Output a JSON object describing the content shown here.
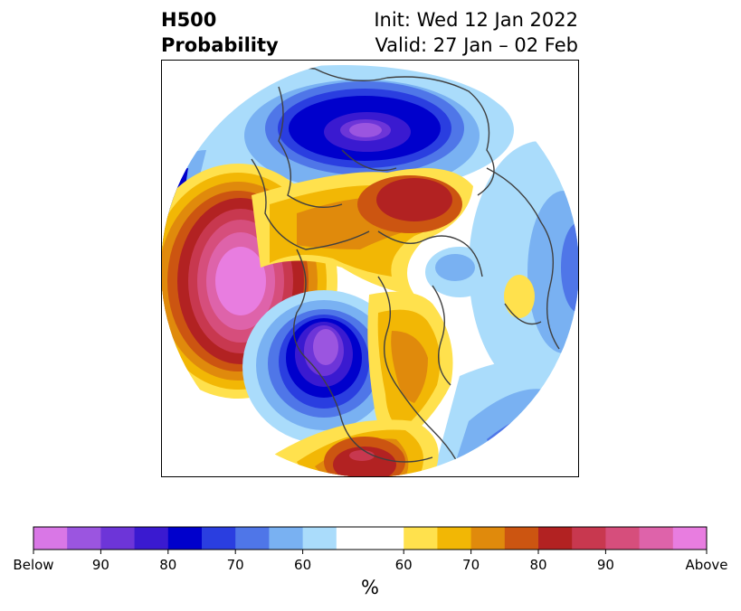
{
  "title": {
    "left_line1": "H500",
    "left_line2": "Probability",
    "right_line1": "Init: Wed 12 Jan 2022",
    "right_line2": "Valid: 27 Jan – 02 Feb"
  },
  "colorbar": {
    "unit": "%",
    "tick_labels": [
      "Below",
      "90",
      "80",
      "70",
      "60",
      "60",
      "70",
      "80",
      "90",
      "Above"
    ],
    "below_colors": [
      "#d977e6",
      "#9b55e0",
      "#6d35d8",
      "#3a1ad0",
      "#0000cc",
      "#2a3ee0",
      "#4f76e8",
      "#79b1f2",
      "#aadcfb"
    ],
    "neutral_color": "#ffffff",
    "above_colors": [
      "#ffe14d",
      "#f2b705",
      "#e08a0c",
      "#cc5511",
      "#b22222",
      "#c8384f",
      "#d64e7c",
      "#de63aa",
      "#e87de0"
    ]
  },
  "colors": {
    "land_outline": "#404040",
    "frame": "#000000"
  }
}
